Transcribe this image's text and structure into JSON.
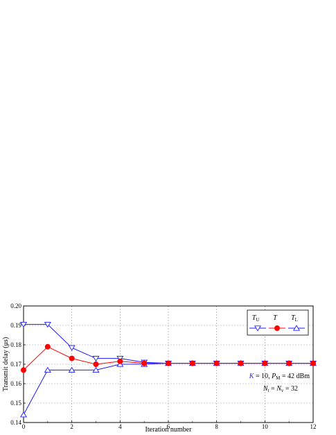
{
  "chart_data": {
    "type": "line",
    "xlabel": "Iteration number",
    "ylabel": "Transmit delay (μs)",
    "xlim": [
      0,
      12
    ],
    "ylim": [
      0.14,
      0.2
    ],
    "xticks": [
      "0",
      "2",
      "4",
      "6",
      "8",
      "10",
      "12"
    ],
    "yticks": [
      "0.14",
      "0.15",
      "0.16",
      "0.17",
      "0.18",
      "0.19",
      "0.20"
    ],
    "grid": true,
    "legend_position": "top-right",
    "x": [
      0,
      1,
      2,
      3,
      4,
      5,
      6,
      7,
      8,
      9,
      10,
      11,
      12
    ],
    "series": [
      {
        "name": "T_U",
        "label_main": "T",
        "label_sub": "U",
        "color": "#1a1aff",
        "marker": "triangle-down",
        "values": [
          0.1905,
          0.1905,
          0.1785,
          0.173,
          0.173,
          0.171,
          0.1705,
          0.1705,
          0.1705,
          0.1705,
          0.1705,
          0.1705,
          0.1705
        ]
      },
      {
        "name": "T",
        "label_main": "T",
        "label_sub": "",
        "color": "#ff0000",
        "marker": "circle",
        "values": [
          0.167,
          0.179,
          0.173,
          0.17,
          0.1715,
          0.1705,
          0.1705,
          0.1705,
          0.1705,
          0.1705,
          0.1705,
          0.1705,
          0.1705
        ]
      },
      {
        "name": "T_L",
        "label_main": "T",
        "label_sub": "L",
        "color": "#1a1aff",
        "marker": "triangle-up",
        "values": [
          0.144,
          0.167,
          0.167,
          0.167,
          0.17,
          0.17,
          0.1705,
          0.1705,
          0.1705,
          0.1705,
          0.1705,
          0.1705,
          0.1705
        ]
      }
    ],
    "annotations": {
      "line1_K": "K",
      "line1_rest": " = 10, ",
      "line1_P": "P",
      "line1_Psub": "M",
      "line1_tail": " = 42 dBm",
      "line2_N1": "N",
      "line2_N1sub": "t",
      "line2_mid": " =  ",
      "line2_N2": "N",
      "line2_N2sub": "v",
      "line2_tail": " = 32"
    }
  }
}
